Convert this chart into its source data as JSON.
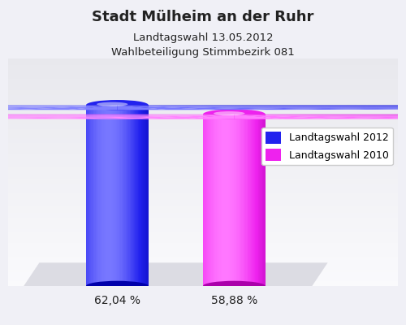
{
  "title": "Stadt Mülheim an der Ruhr",
  "subtitle1": "Landtagswahl 13.05.2012",
  "subtitle2": "Wahlbeteiligung Stimmbezirk 081",
  "categories": [
    "Landtagswahl 2012",
    "Landtagswahl 2010"
  ],
  "values": [
    62.04,
    58.88
  ],
  "bar_colors_main": [
    "#2222ee",
    "#ee22ee"
  ],
  "bar_colors_light": [
    "#7777ff",
    "#ff77ff"
  ],
  "bar_colors_dark": [
    "#0000aa",
    "#aa00aa"
  ],
  "bar_labels": [
    "62,04 %",
    "58,88 %"
  ],
  "bar_positions": [
    0.28,
    0.58
  ],
  "bar_width": 0.16,
  "ylim": [
    0,
    78
  ],
  "bg_color_top": "#e8e8f0",
  "bg_color_bottom": "#f8f8ff",
  "shadow_color": "#c8c8d8",
  "title_fontsize": 13,
  "subtitle_fontsize": 9.5,
  "label_fontsize": 10,
  "legend_fontsize": 9
}
